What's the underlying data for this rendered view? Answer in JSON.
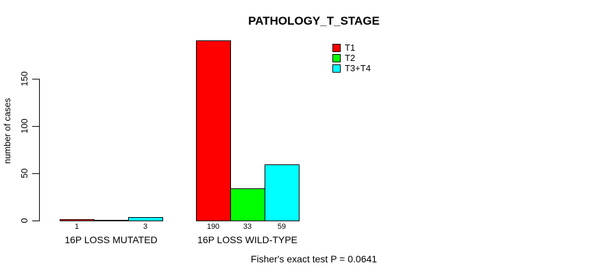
{
  "chart_data": {
    "type": "bar",
    "title": "PATHOLOGY_T_STAGE",
    "ylabel": "number of cases",
    "ylim": [
      0,
      190
    ],
    "yticks": [
      0,
      50,
      100,
      150
    ],
    "grid": false,
    "legend_position": "top-right",
    "series": [
      {
        "name": "T1",
        "color": "#FF0000"
      },
      {
        "name": "T2",
        "color": "#00FF00"
      },
      {
        "name": "T3+T4",
        "color": "#00FFFF"
      }
    ],
    "groups": [
      {
        "label": "16P LOSS MUTATED",
        "values": [
          1,
          0,
          3
        ],
        "bar_labels": [
          "1",
          "",
          "3"
        ]
      },
      {
        "label": "16P LOSS WILD-TYPE",
        "values": [
          190,
          33,
          59
        ],
        "bar_labels": [
          "190",
          "33",
          "59"
        ]
      }
    ],
    "footnote": "Fisher's exact test P = 0.0641"
  }
}
